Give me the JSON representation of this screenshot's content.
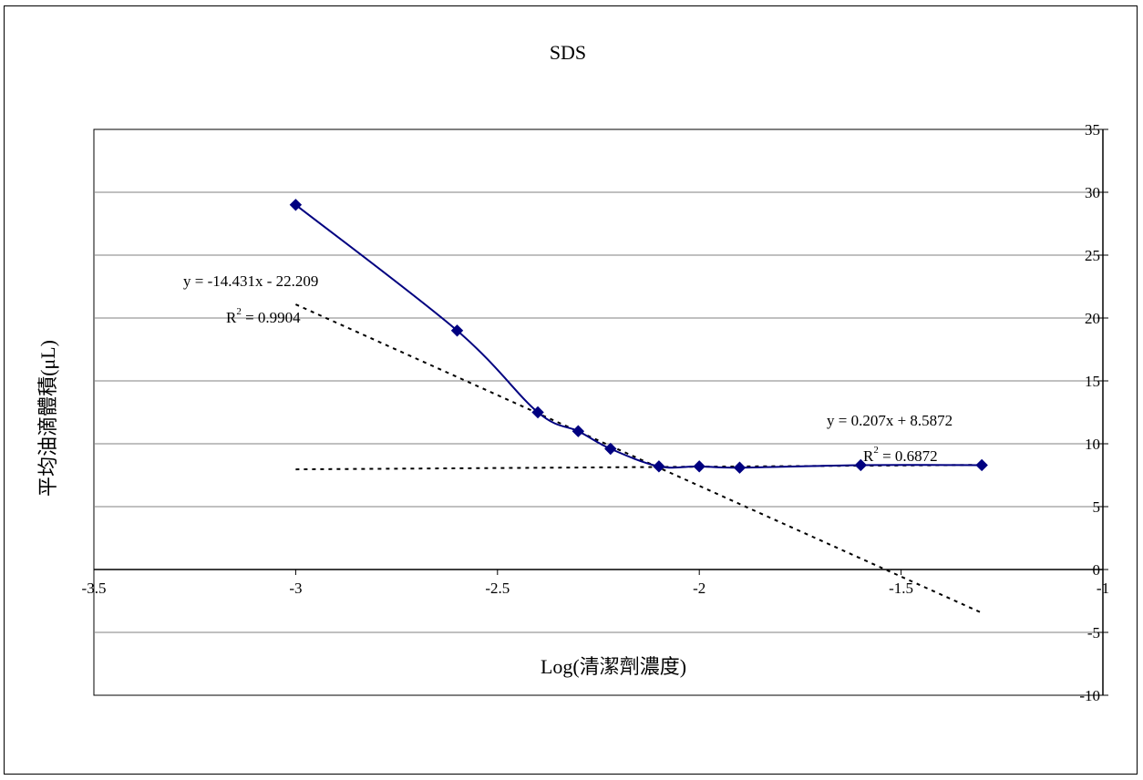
{
  "chart_data": {
    "type": "scatter",
    "title": "SDS",
    "xlabel": "Log(清潔劑濃度)",
    "ylabel": "平均油滴體積(μL)",
    "xlim": [
      -3.5,
      -1
    ],
    "ylim": [
      -10,
      35
    ],
    "x_ticks": [
      "-3.5",
      "-3",
      "-2.5",
      "-2",
      "-1.5",
      "-1"
    ],
    "y_ticks": [
      "35",
      "30",
      "25",
      "20",
      "15",
      "10",
      "5",
      "0",
      "-5",
      "-10"
    ],
    "grid": "horizontal",
    "y_axis_side": "right",
    "series": [
      {
        "x": [
          -3.0,
          -2.6,
          -2.4,
          -2.3,
          -2.22,
          -2.1,
          -2.0,
          -1.9,
          -1.6,
          -1.3
        ],
        "y": [
          29.0,
          19.0,
          12.5,
          11.0,
          9.6,
          8.2,
          8.2,
          8.1,
          8.3,
          8.3
        ],
        "color": "#000080",
        "marker": "diamond",
        "smooth": true
      }
    ],
    "trendlines": [
      {
        "slope": -14.431,
        "intercept": -22.209,
        "x_range": [
          -3.0,
          -1.3
        ],
        "style": "dotted"
      },
      {
        "slope": 0.207,
        "intercept": 8.5872,
        "x_range": [
          -3.0,
          -1.3
        ],
        "style": "dotted"
      }
    ],
    "annotations": [
      {
        "equation": "y = -14.431x - 22.209",
        "r2_prefix": "R",
        "r2_exp": "2",
        "r2_value": " = 0.9904"
      },
      {
        "equation": "y = 0.207x + 8.5872",
        "r2_prefix": "R",
        "r2_exp": "2",
        "r2_value": " = 0.6872"
      }
    ]
  }
}
